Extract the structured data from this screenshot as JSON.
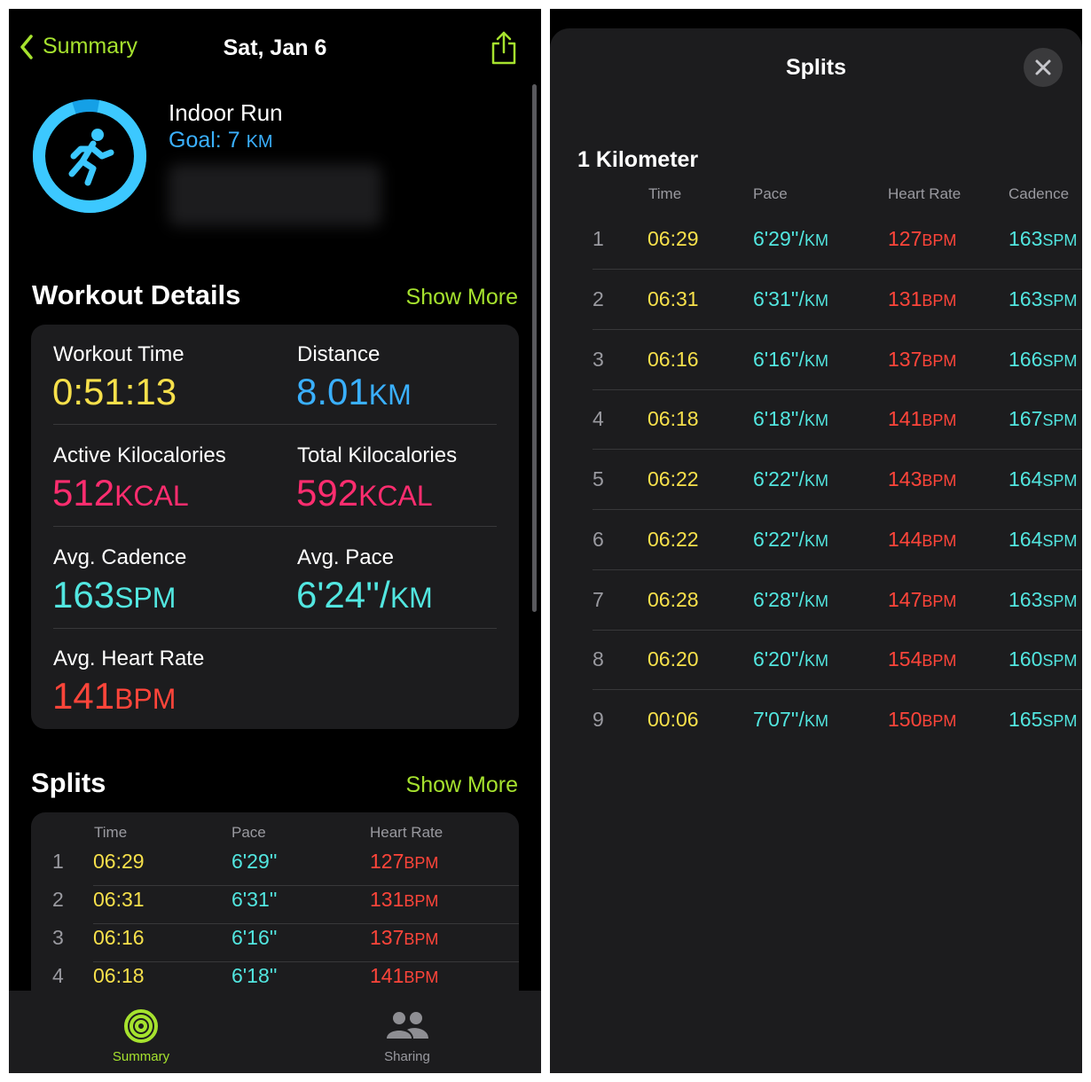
{
  "left": {
    "nav": {
      "back_label": "Summary",
      "title": "Sat, Jan 6"
    },
    "workout": {
      "name": "Indoor Run",
      "goal_label": "Goal: 7 ",
      "goal_unit": "KM"
    },
    "details": {
      "title": "Workout Details",
      "show_more": "Show More",
      "metrics": [
        {
          "label": "Workout Time",
          "value": "0:51:13",
          "unit": ""
        },
        {
          "label": "Distance",
          "value": "8.01",
          "unit": "KM"
        },
        {
          "label": "Active Kilocalories",
          "value": "512",
          "unit": "KCAL"
        },
        {
          "label": "Total Kilocalories",
          "value": "592",
          "unit": "KCAL"
        },
        {
          "label": "Avg. Cadence",
          "value": "163",
          "unit": "SPM"
        },
        {
          "label": "Avg. Pace",
          "value": "6'24''/",
          "unit": "KM"
        },
        {
          "label": "Avg. Heart Rate",
          "value": "141",
          "unit": "BPM"
        }
      ]
    },
    "splits": {
      "title": "Splits",
      "show_more": "Show More",
      "headers": [
        "Time",
        "Pace",
        "Heart Rate"
      ],
      "rows": [
        {
          "idx": "1",
          "time": "06:29",
          "pace": "6'29''",
          "hr": "127",
          "hr_unit": "BPM"
        },
        {
          "idx": "2",
          "time": "06:31",
          "pace": "6'31''",
          "hr": "131",
          "hr_unit": "BPM"
        },
        {
          "idx": "3",
          "time": "06:16",
          "pace": "6'16''",
          "hr": "137",
          "hr_unit": "BPM"
        },
        {
          "idx": "4",
          "time": "06:18",
          "pace": "6'18''",
          "hr": "141",
          "hr_unit": "BPM"
        }
      ]
    },
    "tabs": [
      {
        "label": "Summary",
        "icon": "activity-rings-icon"
      },
      {
        "label": "Sharing",
        "icon": "people-icon"
      }
    ]
  },
  "right": {
    "title": "Splits",
    "section": "1 Kilometer",
    "headers": [
      "Time",
      "Pace",
      "Heart Rate",
      "Cadence"
    ],
    "rows": [
      {
        "idx": "1",
        "time": "06:29",
        "pace": "6'29''/",
        "pace_unit": "KM",
        "hr": "127",
        "hr_unit": "BPM",
        "cad": "163",
        "cad_unit": "SPM"
      },
      {
        "idx": "2",
        "time": "06:31",
        "pace": "6'31''/",
        "pace_unit": "KM",
        "hr": "131",
        "hr_unit": "BPM",
        "cad": "163",
        "cad_unit": "SPM"
      },
      {
        "idx": "3",
        "time": "06:16",
        "pace": "6'16''/",
        "pace_unit": "KM",
        "hr": "137",
        "hr_unit": "BPM",
        "cad": "166",
        "cad_unit": "SPM"
      },
      {
        "idx": "4",
        "time": "06:18",
        "pace": "6'18''/",
        "pace_unit": "KM",
        "hr": "141",
        "hr_unit": "BPM",
        "cad": "167",
        "cad_unit": "SPM"
      },
      {
        "idx": "5",
        "time": "06:22",
        "pace": "6'22''/",
        "pace_unit": "KM",
        "hr": "143",
        "hr_unit": "BPM",
        "cad": "164",
        "cad_unit": "SPM"
      },
      {
        "idx": "6",
        "time": "06:22",
        "pace": "6'22''/",
        "pace_unit": "KM",
        "hr": "144",
        "hr_unit": "BPM",
        "cad": "164",
        "cad_unit": "SPM"
      },
      {
        "idx": "7",
        "time": "06:28",
        "pace": "6'28''/",
        "pace_unit": "KM",
        "hr": "147",
        "hr_unit": "BPM",
        "cad": "163",
        "cad_unit": "SPM"
      },
      {
        "idx": "8",
        "time": "06:20",
        "pace": "6'20''/",
        "pace_unit": "KM",
        "hr": "154",
        "hr_unit": "BPM",
        "cad": "160",
        "cad_unit": "SPM"
      },
      {
        "idx": "9",
        "time": "00:06",
        "pace": "7'07''/",
        "pace_unit": "KM",
        "hr": "150",
        "hr_unit": "BPM",
        "cad": "165",
        "cad_unit": "SPM"
      }
    ]
  },
  "colors": {
    "time": "#f7e04b",
    "pace": "#52e6e0",
    "heart": "#ff453a",
    "kcal": "#ff2d6f",
    "distance": "#3ab0ff",
    "accent": "#a6e22e"
  }
}
